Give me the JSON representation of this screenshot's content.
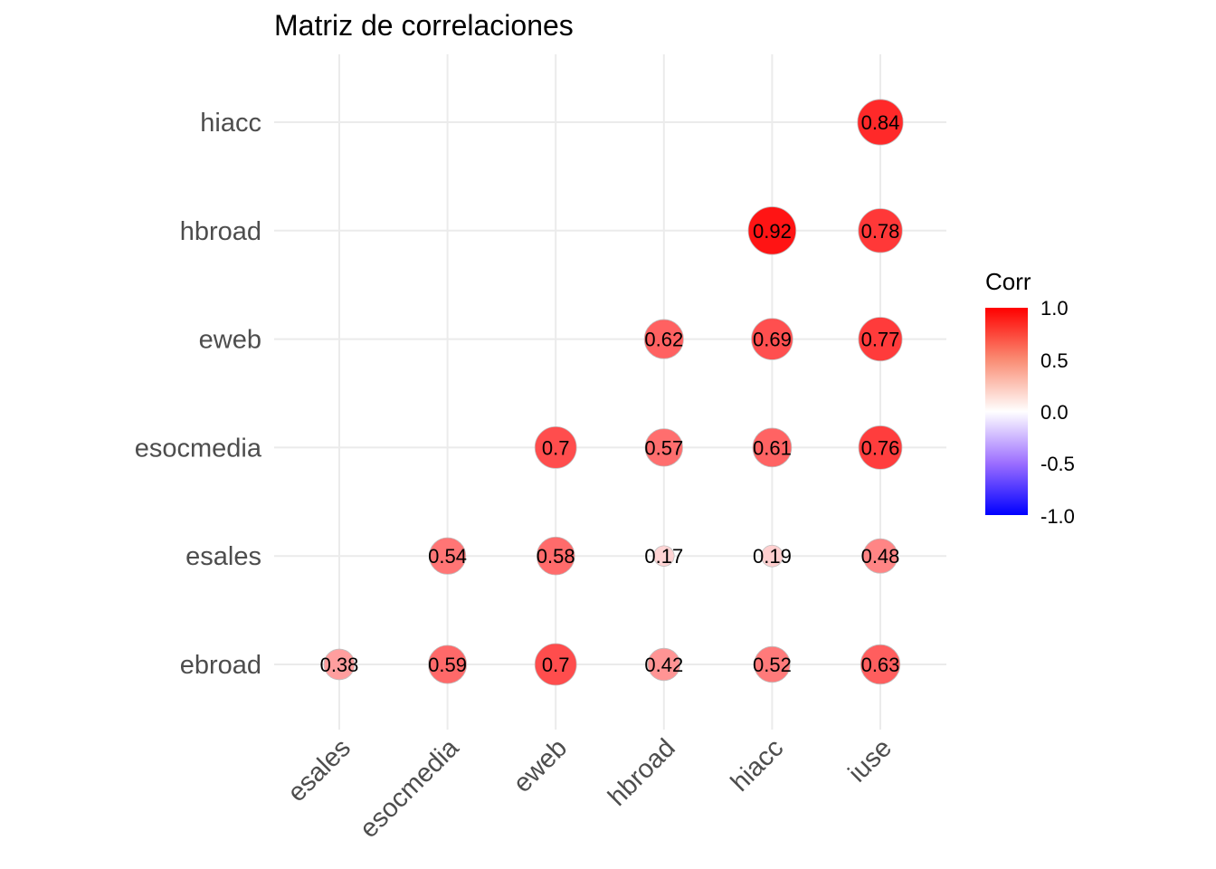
{
  "chart_data": {
    "type": "heatmap",
    "title": "Matriz de correlaciones",
    "x_categories": [
      "esales",
      "esocmedia",
      "eweb",
      "hbroad",
      "hiacc",
      "iuse"
    ],
    "y_categories": [
      "ebroad",
      "esales",
      "esocmedia",
      "eweb",
      "hbroad",
      "hiacc"
    ],
    "cells": [
      {
        "x": "esales",
        "y": "ebroad",
        "value": 0.38,
        "label": "0.38"
      },
      {
        "x": "esocmedia",
        "y": "ebroad",
        "value": 0.59,
        "label": "0.59"
      },
      {
        "x": "eweb",
        "y": "ebroad",
        "value": 0.7,
        "label": "0.7"
      },
      {
        "x": "hbroad",
        "y": "ebroad",
        "value": 0.42,
        "label": "0.42"
      },
      {
        "x": "hiacc",
        "y": "ebroad",
        "value": 0.52,
        "label": "0.52"
      },
      {
        "x": "iuse",
        "y": "ebroad",
        "value": 0.63,
        "label": "0.63"
      },
      {
        "x": "esocmedia",
        "y": "esales",
        "value": 0.54,
        "label": "0.54"
      },
      {
        "x": "eweb",
        "y": "esales",
        "value": 0.58,
        "label": "0.58"
      },
      {
        "x": "hbroad",
        "y": "esales",
        "value": 0.17,
        "label": "0.17"
      },
      {
        "x": "hiacc",
        "y": "esales",
        "value": 0.19,
        "label": "0.19"
      },
      {
        "x": "iuse",
        "y": "esales",
        "value": 0.48,
        "label": "0.48"
      },
      {
        "x": "eweb",
        "y": "esocmedia",
        "value": 0.7,
        "label": "0.7"
      },
      {
        "x": "hbroad",
        "y": "esocmedia",
        "value": 0.57,
        "label": "0.57"
      },
      {
        "x": "hiacc",
        "y": "esocmedia",
        "value": 0.61,
        "label": "0.61"
      },
      {
        "x": "iuse",
        "y": "esocmedia",
        "value": 0.76,
        "label": "0.76"
      },
      {
        "x": "hbroad",
        "y": "eweb",
        "value": 0.62,
        "label": "0.62"
      },
      {
        "x": "hiacc",
        "y": "eweb",
        "value": 0.69,
        "label": "0.69"
      },
      {
        "x": "iuse",
        "y": "eweb",
        "value": 0.77,
        "label": "0.77"
      },
      {
        "x": "hiacc",
        "y": "hbroad",
        "value": 0.92,
        "label": "0.92"
      },
      {
        "x": "iuse",
        "y": "hbroad",
        "value": 0.78,
        "label": "0.78"
      },
      {
        "x": "iuse",
        "y": "hiacc",
        "value": 0.84,
        "label": "0.84"
      }
    ],
    "legend": {
      "title": "Corr",
      "ticks": [
        "1.0",
        "0.5",
        "0.0",
        "-0.5",
        "-1.0"
      ],
      "range": [
        -1,
        1
      ],
      "colors": {
        "low": "#0000ff",
        "mid": "#ffffff",
        "high": "#ff0000"
      },
      "placement": "right"
    },
    "grid": true
  }
}
